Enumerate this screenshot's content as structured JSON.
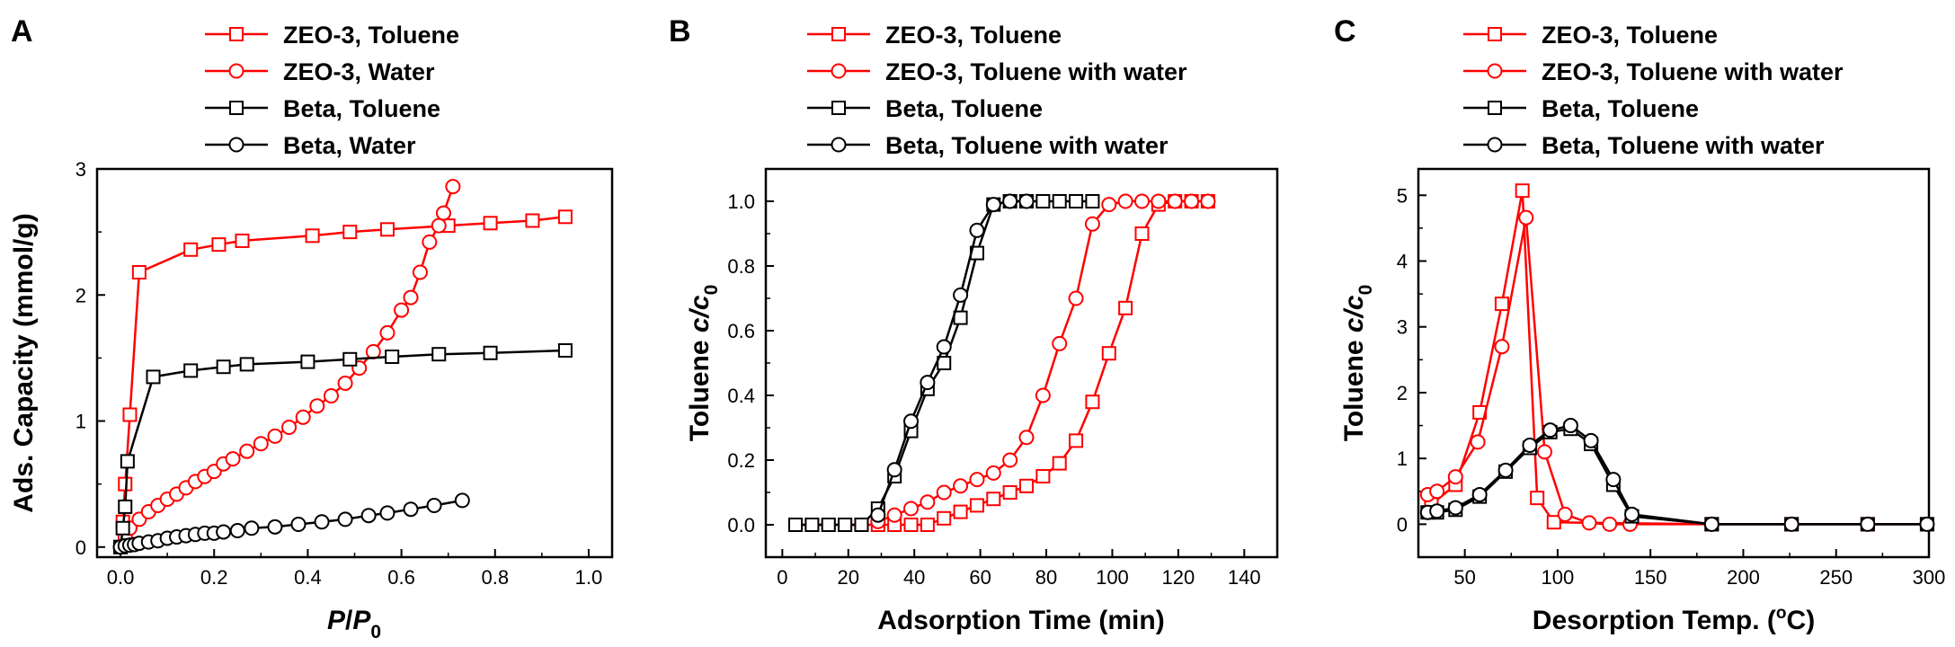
{
  "colors": {
    "red": "#ff0000",
    "black": "#000000"
  },
  "chart_data": [
    {
      "type": "line",
      "panel_label": "A",
      "xlabel": {
        "italic1": "P",
        "slash": "/",
        "italic2": "P",
        "sub": "0"
      },
      "ylabel": "Ads. Capacity (mmol/g)",
      "xlim": [
        -0.05,
        1.05
      ],
      "ylim": [
        -0.08,
        3.0
      ],
      "xticks": [
        0.0,
        0.2,
        0.4,
        0.6,
        0.8,
        1.0
      ],
      "xtick_labels": [
        "0.0",
        "0.2",
        "0.4",
        "0.6",
        "0.8",
        "1.0"
      ],
      "yticks": [
        0,
        1,
        2,
        3
      ],
      "ytick_labels": [
        "0",
        "1",
        "2",
        "3"
      ],
      "legend": [
        {
          "label": "ZEO-3, Toluene",
          "color": "#ff0000",
          "marker": "square"
        },
        {
          "label": "ZEO-3, Water",
          "color": "#ff0000",
          "marker": "circle"
        },
        {
          "label": "Beta, Toluene",
          "color": "#000000",
          "marker": "square"
        },
        {
          "label": "Beta, Water",
          "color": "#000000",
          "marker": "circle"
        }
      ],
      "series": [
        {
          "name": "ZEO-3, Toluene",
          "color": "#ff0000",
          "marker": "square",
          "x": [
            0.0,
            0.005,
            0.01,
            0.02,
            0.04,
            0.15,
            0.21,
            0.26,
            0.41,
            0.49,
            0.57,
            0.7,
            0.79,
            0.88,
            0.95
          ],
          "y": [
            0.0,
            0.2,
            0.5,
            1.05,
            2.18,
            2.36,
            2.4,
            2.43,
            2.47,
            2.5,
            2.52,
            2.55,
            2.57,
            2.59,
            2.62
          ]
        },
        {
          "name": "ZEO-3, Water",
          "color": "#ff0000",
          "marker": "circle",
          "x": [
            0.0,
            0.01,
            0.02,
            0.04,
            0.06,
            0.08,
            0.1,
            0.12,
            0.14,
            0.16,
            0.18,
            0.2,
            0.22,
            0.24,
            0.27,
            0.3,
            0.33,
            0.36,
            0.39,
            0.42,
            0.45,
            0.48,
            0.51,
            0.54,
            0.57,
            0.6,
            0.62,
            0.64,
            0.66,
            0.68,
            0.69,
            0.71
          ],
          "y": [
            0.0,
            0.08,
            0.15,
            0.22,
            0.28,
            0.33,
            0.38,
            0.42,
            0.47,
            0.52,
            0.56,
            0.6,
            0.66,
            0.7,
            0.76,
            0.82,
            0.88,
            0.95,
            1.03,
            1.12,
            1.2,
            1.3,
            1.42,
            1.55,
            1.7,
            1.88,
            1.98,
            2.18,
            2.42,
            2.55,
            2.65,
            2.86
          ]
        },
        {
          "name": "Beta, Toluene",
          "color": "#000000",
          "marker": "square",
          "x": [
            0.0,
            0.005,
            0.01,
            0.015,
            0.07,
            0.15,
            0.22,
            0.27,
            0.4,
            0.49,
            0.58,
            0.68,
            0.79,
            0.95
          ],
          "y": [
            0.0,
            0.15,
            0.32,
            0.68,
            1.35,
            1.4,
            1.43,
            1.45,
            1.47,
            1.49,
            1.51,
            1.53,
            1.54,
            1.56
          ]
        },
        {
          "name": "Beta, Water",
          "color": "#000000",
          "marker": "circle",
          "x": [
            0.0,
            0.01,
            0.02,
            0.03,
            0.04,
            0.06,
            0.08,
            0.1,
            0.12,
            0.14,
            0.16,
            0.18,
            0.2,
            0.22,
            0.25,
            0.28,
            0.33,
            0.38,
            0.43,
            0.48,
            0.53,
            0.57,
            0.62,
            0.67,
            0.73
          ],
          "y": [
            0.0,
            0.01,
            0.015,
            0.02,
            0.03,
            0.04,
            0.05,
            0.07,
            0.08,
            0.09,
            0.1,
            0.11,
            0.11,
            0.12,
            0.13,
            0.15,
            0.16,
            0.18,
            0.2,
            0.22,
            0.25,
            0.27,
            0.3,
            0.33,
            0.37
          ]
        }
      ]
    },
    {
      "type": "line",
      "panel_label": "B",
      "xlabel": "Adsorption Time (min)",
      "ylabel": {
        "main": "Toluene ",
        "italic": "c/c",
        "sub": "0"
      },
      "xlim": [
        -5,
        150
      ],
      "ylim": [
        -0.1,
        1.1
      ],
      "xticks": [
        0,
        20,
        40,
        60,
        80,
        100,
        120,
        140
      ],
      "xtick_labels": [
        "0",
        "20",
        "40",
        "60",
        "80",
        "100",
        "120",
        "140"
      ],
      "yticks": [
        0.0,
        0.2,
        0.4,
        0.6,
        0.8,
        1.0
      ],
      "ytick_labels": [
        "0.0",
        "0.2",
        "0.4",
        "0.6",
        "0.8",
        "1.0"
      ],
      "legend": [
        {
          "label": "ZEO-3, Toluene",
          "color": "#ff0000",
          "marker": "square"
        },
        {
          "label": "ZEO-3, Toluene with water",
          "color": "#ff0000",
          "marker": "circle"
        },
        {
          "label": "Beta, Toluene",
          "color": "#000000",
          "marker": "square"
        },
        {
          "label": "Beta, Toluene with water",
          "color": "#000000",
          "marker": "circle"
        }
      ],
      "series": [
        {
          "name": "ZEO-3, Toluene",
          "color": "#ff0000",
          "marker": "square",
          "x": [
            4,
            9,
            14,
            19,
            24,
            29,
            34,
            39,
            44,
            49,
            54,
            59,
            64,
            69,
            74,
            79,
            84,
            89,
            94,
            99,
            104,
            109,
            114,
            119,
            124,
            129
          ],
          "y": [
            0,
            0,
            0,
            0,
            0,
            0,
            0,
            0,
            0,
            0.02,
            0.04,
            0.06,
            0.08,
            0.1,
            0.12,
            0.15,
            0.19,
            0.26,
            0.38,
            0.53,
            0.67,
            0.9,
            0.99,
            1.0,
            1.0,
            1.0
          ]
        },
        {
          "name": "ZEO-3, Toluene with water",
          "color": "#ff0000",
          "marker": "circle",
          "x": [
            29,
            34,
            39,
            44,
            49,
            54,
            59,
            64,
            69,
            74,
            79,
            84,
            89,
            94,
            99,
            104,
            109,
            114,
            119,
            124,
            129
          ],
          "y": [
            0.01,
            0.03,
            0.05,
            0.07,
            0.1,
            0.12,
            0.14,
            0.16,
            0.2,
            0.27,
            0.4,
            0.56,
            0.7,
            0.93,
            0.99,
            1.0,
            1.0,
            1.0,
            1.0,
            1.0,
            1.0
          ]
        },
        {
          "name": "Beta, Toluene",
          "color": "#000000",
          "marker": "square",
          "x": [
            4,
            9,
            14,
            19,
            24,
            29,
            34,
            39,
            44,
            49,
            54,
            59,
            64,
            69,
            74,
            79,
            84,
            89,
            94
          ],
          "y": [
            0,
            0,
            0,
            0,
            0,
            0.05,
            0.15,
            0.29,
            0.42,
            0.5,
            0.64,
            0.84,
            0.99,
            1.0,
            1.0,
            1.0,
            1.0,
            1.0,
            1.0
          ]
        },
        {
          "name": "Beta, Toluene with water",
          "color": "#000000",
          "marker": "circle",
          "x": [
            29,
            34,
            39,
            44,
            49,
            54,
            59,
            64,
            69,
            74
          ],
          "y": [
            0.03,
            0.17,
            0.32,
            0.44,
            0.55,
            0.71,
            0.91,
            0.99,
            1.0,
            1.0
          ]
        }
      ]
    },
    {
      "type": "line",
      "panel_label": "C",
      "xlabel": {
        "main": "Desorption Temp. (",
        "sup": "o",
        "tail": "C)"
      },
      "ylabel": {
        "main": "Toluene ",
        "italic": "c/c",
        "sub": "0"
      },
      "xlim": [
        25,
        300
      ],
      "ylim": [
        -0.5,
        5.4
      ],
      "xticks": [
        50,
        100,
        150,
        200,
        250,
        300
      ],
      "xtick_labels": [
        "50",
        "100",
        "150",
        "200",
        "250",
        "300"
      ],
      "yticks": [
        0,
        1,
        2,
        3,
        4,
        5
      ],
      "ytick_labels": [
        "0",
        "1",
        "2",
        "3",
        "4",
        "5"
      ],
      "legend": [
        {
          "label": "ZEO-3, Toluene",
          "color": "#ff0000",
          "marker": "square"
        },
        {
          "label": "ZEO-3, Toluene with water",
          "color": "#ff0000",
          "marker": "circle"
        },
        {
          "label": "Beta, Toluene",
          "color": "#000000",
          "marker": "square"
        },
        {
          "label": "Beta, Toluene with water",
          "color": "#000000",
          "marker": "circle"
        }
      ],
      "series": [
        {
          "name": "ZEO-3, Toluene",
          "color": "#ff0000",
          "marker": "square",
          "x": [
            32,
            45,
            58,
            70,
            81,
            89,
            98,
            183,
            226,
            267,
            299
          ],
          "y": [
            0.3,
            0.6,
            1.7,
            3.35,
            5.07,
            0.4,
            0.03,
            0.0,
            0.0,
            0.0,
            0.0
          ]
        },
        {
          "name": "ZEO-3, Toluene with water",
          "color": "#ff0000",
          "marker": "circle",
          "x": [
            30,
            35,
            45,
            57,
            70,
            83,
            93,
            104,
            117,
            128,
            139,
            183
          ],
          "y": [
            0.45,
            0.5,
            0.72,
            1.25,
            2.7,
            4.66,
            1.1,
            0.15,
            0.02,
            0.0,
            0.0,
            0.0
          ]
        },
        {
          "name": "Beta, Toluene",
          "color": "#000000",
          "marker": "square",
          "x": [
            30,
            35,
            45,
            58,
            72,
            85,
            96,
            107,
            118,
            130,
            140,
            183,
            226,
            267,
            299
          ],
          "y": [
            0.18,
            0.18,
            0.22,
            0.42,
            0.8,
            1.16,
            1.4,
            1.45,
            1.22,
            0.6,
            0.12,
            0.0,
            0.0,
            0.0,
            0.0
          ]
        },
        {
          "name": "Beta, Toluene with water",
          "color": "#000000",
          "marker": "circle",
          "x": [
            30,
            35,
            45,
            58,
            72,
            85,
            96,
            107,
            118,
            130,
            140,
            183,
            226,
            267,
            299
          ],
          "y": [
            0.18,
            0.2,
            0.25,
            0.45,
            0.82,
            1.2,
            1.43,
            1.5,
            1.27,
            0.68,
            0.15,
            0.0,
            0.0,
            0.0,
            0.0
          ]
        }
      ]
    }
  ]
}
